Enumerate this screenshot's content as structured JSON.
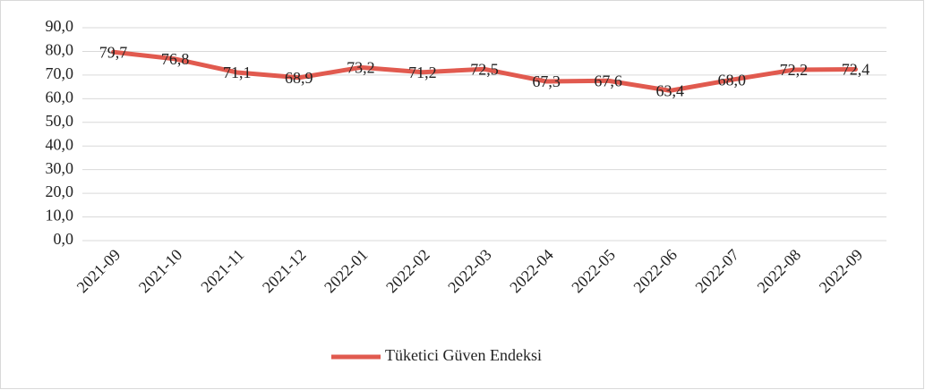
{
  "chart_data": {
    "type": "line",
    "categories": [
      "2021-09",
      "2021-10",
      "2021-11",
      "2021-12",
      "2022-01",
      "2022-02",
      "2022-03",
      "2022-04",
      "2022-05",
      "2022-06",
      "2022-07",
      "2022-08",
      "2022-09"
    ],
    "series": [
      {
        "name": "Tüketici Güven Endeksi",
        "color": "#e15a4f",
        "values": [
          79.7,
          76.8,
          71.1,
          68.9,
          73.2,
          71.2,
          72.5,
          67.3,
          67.6,
          63.4,
          68.0,
          72.2,
          72.4
        ],
        "value_labels": [
          "79,7",
          "76,8",
          "71,1",
          "68,9",
          "73,2",
          "71,2",
          "72,5",
          "67,3",
          "67,6",
          "63,4",
          "68,0",
          "72,2",
          "72,4"
        ]
      }
    ],
    "ylim": [
      0,
      90
    ],
    "yticks": [
      {
        "value": 0,
        "label": "0,0"
      },
      {
        "value": 10,
        "label": "10,0"
      },
      {
        "value": 20,
        "label": "20,0"
      },
      {
        "value": 30,
        "label": "30,0"
      },
      {
        "value": 40,
        "label": "40,0"
      },
      {
        "value": 50,
        "label": "50,0"
      },
      {
        "value": 60,
        "label": "60,0"
      },
      {
        "value": 70,
        "label": "70,0"
      },
      {
        "value": 80,
        "label": "80,0"
      },
      {
        "value": 90,
        "label": "90,0"
      }
    ],
    "grid": true,
    "legend": "bottom"
  }
}
